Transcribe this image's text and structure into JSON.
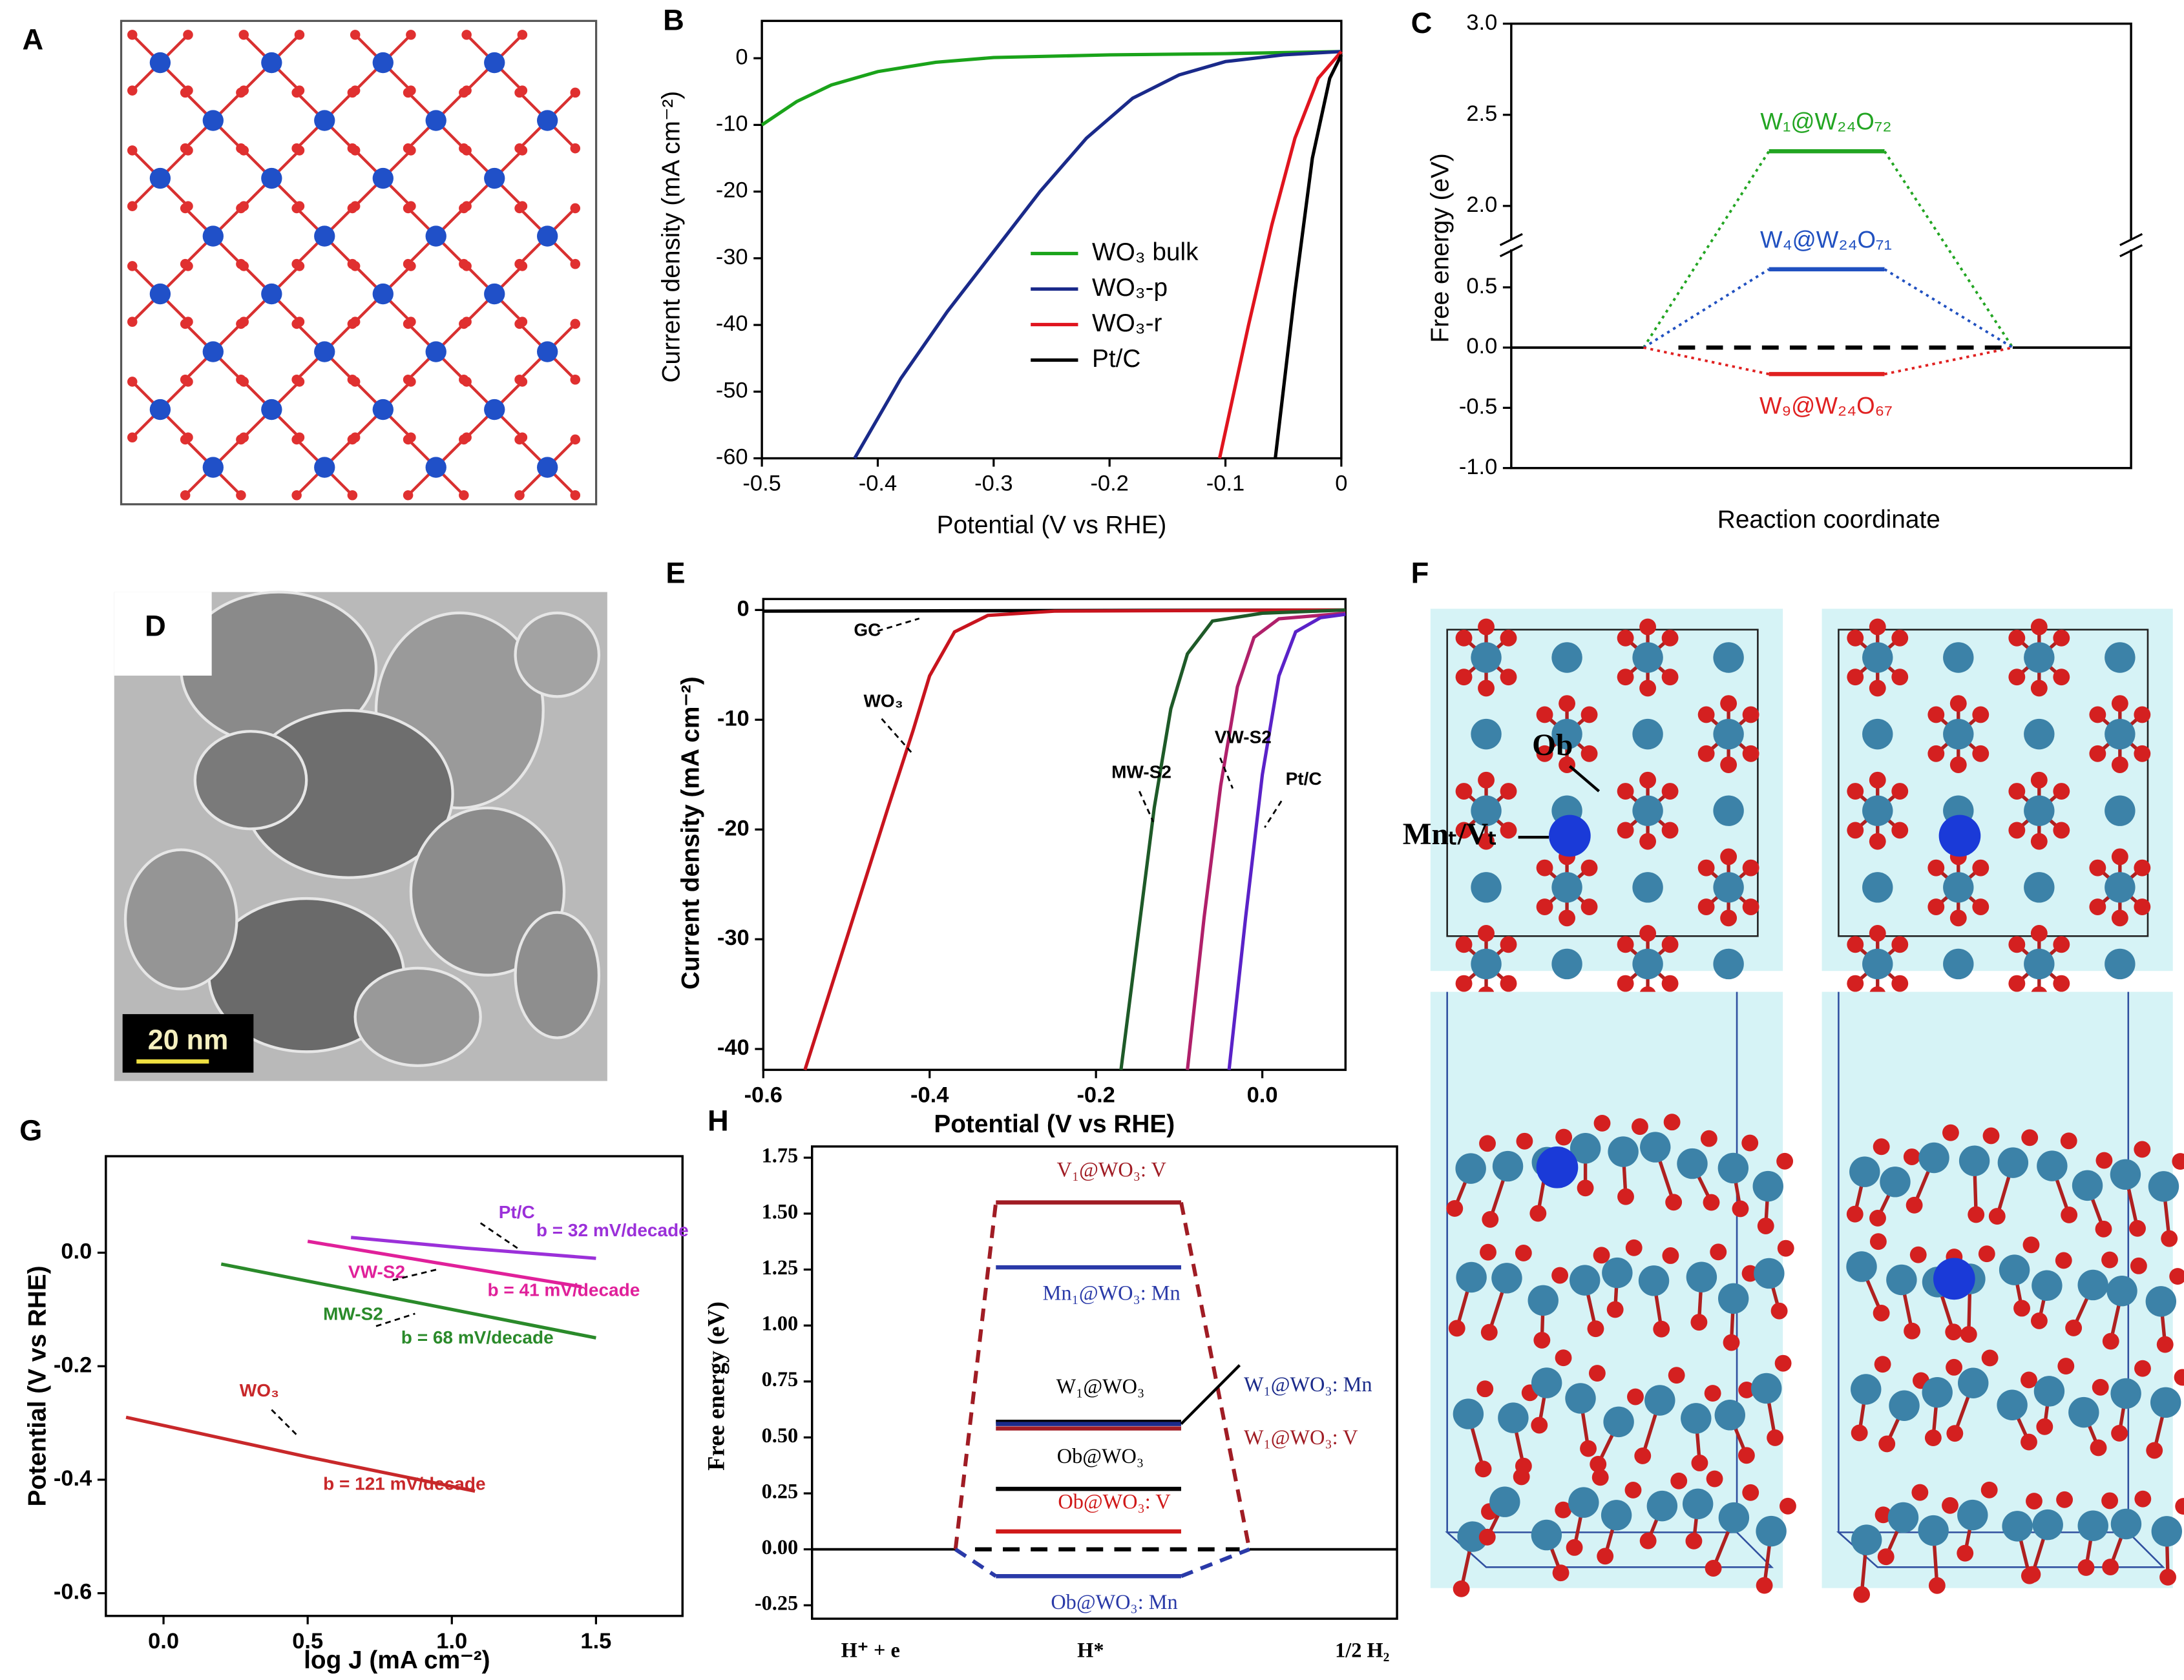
{
  "panel_labels": [
    "A",
    "B",
    "C",
    "D",
    "E",
    "F",
    "G",
    "H"
  ],
  "tem_image": {
    "scale_bar": "20 nm"
  },
  "structure_labels": [
    "Ob",
    "Mnₜ/Vₜ"
  ],
  "chart_data": [
    {
      "type": "line",
      "x_label": "Potential (V vs RHE)",
      "y_label": "Current density (mA cm⁻²)",
      "xlim": [
        -0.5,
        0
      ],
      "ylim": [
        -60,
        5.6
      ],
      "xticks": [
        -0.5,
        -0.4,
        -0.3,
        -0.2,
        -0.1,
        0
      ],
      "yticks": [
        0,
        -10,
        -20,
        -30,
        -40,
        -50,
        -60
      ],
      "legend": "center-right",
      "series": [
        {
          "name": "WO₃ bulk",
          "color": "#1aa31a",
          "x": [
            -0.5,
            -0.47,
            -0.44,
            -0.4,
            -0.35,
            -0.3,
            -0.2,
            -0.1,
            0
          ],
          "values": [
            -10,
            -6.5,
            -4,
            -2,
            -0.6,
            0.1,
            0.5,
            0.7,
            1
          ]
        },
        {
          "name": "WO₃-p",
          "color": "#1a2a8a",
          "x": [
            -0.42,
            -0.38,
            -0.34,
            -0.3,
            -0.26,
            -0.22,
            -0.18,
            -0.14,
            -0.1,
            -0.05,
            0
          ],
          "values": [
            -60,
            -48,
            -38,
            -29,
            -20,
            -12,
            -6,
            -2.5,
            -0.5,
            0.5,
            1
          ]
        },
        {
          "name": "WO₃-r",
          "color": "#e0141e",
          "x": [
            -0.105,
            -0.08,
            -0.06,
            -0.04,
            -0.02,
            0
          ],
          "values": [
            -60,
            -40,
            -25,
            -12,
            -3,
            1
          ]
        },
        {
          "name": "Pt/C",
          "color": "#000000",
          "x": [
            -0.057,
            -0.04,
            -0.025,
            -0.01,
            0
          ],
          "values": [
            -60,
            -35,
            -15,
            -3,
            0.5
          ]
        }
      ]
    },
    {
      "type": "energy_levels",
      "x_label": "Reaction coordinate",
      "y_label": "Free energy (eV)",
      "ylim": [
        -1,
        3
      ],
      "ybreak": [
        0.85,
        1.8
      ],
      "yticks": [
        {
          "value": -1,
          "label": "-1.0"
        },
        -0.5,
        {
          "value": 0,
          "label": "0.0"
        },
        0.5,
        {
          "value": 2,
          "label": "2.0"
        },
        2.5,
        {
          "value": 3,
          "label": "3.0"
        }
      ],
      "baseline": 0,
      "connector_style": "dotted",
      "levels": [
        {
          "label": "W₁@W₂₄O₇₂",
          "color": "#22a522",
          "value": 2.3,
          "connector": true
        },
        {
          "label": "W₄@W₂₄O₇₁",
          "color": "#2050c0",
          "value": 0.65,
          "connector": true
        },
        {
          "label": "W₉@W₂₄O₆₇",
          "color": "#e02020",
          "value": -0.22,
          "connector": true
        }
      ]
    },
    {
      "type": "line",
      "x_label": "Potential (V vs RHE)",
      "y_label": "Current density (mA cm⁻²)",
      "xlim": [
        -0.6,
        0.1
      ],
      "ylim": [
        -41.9,
        1
      ],
      "xticks": [
        -0.6,
        -0.4,
        -0.2,
        {
          "value": 0,
          "label": "0.0"
        }
      ],
      "yticks": [
        0,
        -10,
        -20,
        -30,
        -40
      ],
      "series": [
        {
          "name": "GC",
          "color": "#000000",
          "x": [
            -0.6,
            0.1
          ],
          "values": [
            -0.1,
            0
          ]
        },
        {
          "name": "WO₃",
          "color": "#c8141e",
          "x": [
            -0.55,
            -0.5,
            -0.45,
            -0.42,
            -0.4,
            -0.37,
            -0.33,
            -0.25,
            0.1
          ],
          "values": [
            -41.9,
            -30,
            -18,
            -11,
            -6,
            -2,
            -0.5,
            -0.1,
            0
          ]
        },
        {
          "name": "MW-S2",
          "color": "#1e5a28",
          "x": [
            -0.17,
            -0.15,
            -0.13,
            -0.11,
            -0.09,
            -0.06,
            0,
            0.1
          ],
          "values": [
            -41.9,
            -30,
            -18,
            -9,
            -4,
            -1,
            -0.3,
            0
          ]
        },
        {
          "name": "VW-S2",
          "color": "#b0206a",
          "x": [
            -0.09,
            -0.07,
            -0.05,
            -0.03,
            -0.01,
            0.02,
            0.1
          ],
          "values": [
            -41.9,
            -28,
            -16,
            -7,
            -2.5,
            -0.8,
            -0.3
          ]
        },
        {
          "name": "Pt/C",
          "color": "#5a22c8",
          "x": [
            -0.04,
            -0.02,
            0,
            0.02,
            0.04,
            0.07,
            0.1
          ],
          "values": [
            -41.9,
            -28,
            -15,
            -6,
            -2,
            -0.7,
            -0.4
          ]
        }
      ],
      "annotations": [
        {
          "text": "GC",
          "color": "#000000"
        },
        {
          "text": "WO₃",
          "color": "#000000"
        },
        {
          "text": "MW-S2",
          "color": "#000000"
        },
        {
          "text": "VW-S2",
          "color": "#000000"
        },
        {
          "text": "Pt/C",
          "color": "#000000"
        }
      ]
    },
    {
      "type": "line",
      "x_label": "log J (mA cm⁻²)",
      "y_label": "Potential (V vs RHE)",
      "xlim": [
        -0.2,
        1.8
      ],
      "ylim": [
        -0.64,
        0.17
      ],
      "xticks": [
        {
          "value": 0,
          "label": "0.0"
        },
        0.5,
        {
          "value": 1,
          "label": "1.0"
        },
        1.5
      ],
      "yticks": [
        {
          "value": 0,
          "label": "0.0"
        },
        -0.2,
        -0.4,
        -0.6
      ],
      "series": [
        {
          "name": "Pt/C",
          "color": "#9b30d9",
          "x": [
            0.65,
            1.05,
            1.5
          ],
          "values": [
            0.027,
            0.008,
            -0.01
          ]
        },
        {
          "name": "VW-S2",
          "color": "#e0209a",
          "x": [
            0.5,
            0.95,
            1.45
          ],
          "values": [
            0.02,
            -0.018,
            -0.06
          ]
        },
        {
          "name": "MW-S2",
          "color": "#2a8a2a",
          "x": [
            0.2,
            0.85,
            1.5
          ],
          "values": [
            -0.02,
            -0.085,
            -0.15
          ]
        },
        {
          "name": "WO₃",
          "color": "#c8282a",
          "x": [
            -0.13,
            0.5,
            1.08
          ],
          "values": [
            -0.29,
            -0.36,
            -0.42
          ]
        }
      ],
      "annotations": [
        {
          "text": "Pt/C",
          "color": "#9b30d9"
        },
        {
          "text": "b = 32 mV/decade",
          "color": "#9b30d9"
        },
        {
          "text": "VW-S2",
          "color": "#e0209a"
        },
        {
          "text": "b = 41 mV/decade",
          "color": "#e0209a"
        },
        {
          "text": "MW-S2",
          "color": "#2a8a2a"
        },
        {
          "text": "b = 68 mV/decade",
          "color": "#2a8a2a"
        },
        {
          "text": "WO₃",
          "color": "#c8282a"
        },
        {
          "text": "b = 121 mV/decade",
          "color": "#c8282a"
        }
      ]
    },
    {
      "type": "energy_levels",
      "y_label": "Free energy (eV)",
      "categories": [
        "H⁺ + e",
        "H*",
        "1/2 H₂"
      ],
      "ylim": [
        -0.31,
        1.8
      ],
      "yticks": [
        1.75,
        {
          "value": 1.5,
          "label": "1.50"
        },
        1.25,
        {
          "value": 1,
          "label": "1.00"
        },
        0.75,
        {
          "value": 0.5,
          "label": "0.50"
        },
        0.25,
        {
          "value": 0,
          "label": "0.00"
        },
        -0.25
      ],
      "baseline": 0,
      "connector_style": "dashed",
      "levels": [
        {
          "label": "V₁@WO₃: V",
          "color": "#a01c24",
          "value": 1.55,
          "connector": true
        },
        {
          "label": "Mn₁@WO₃: Mn",
          "color": "#2a3aa8",
          "value": 1.26
        },
        {
          "label": "W₁@WO₃",
          "color": "#000000",
          "value": 0.57
        },
        {
          "label": "W₁@WO₃: Mn",
          "color": "#1a2a8a",
          "value": 0.56
        },
        {
          "label": "W₁@WO₃: V",
          "color": "#a01c24",
          "value": 0.54
        },
        {
          "label": "Ob@WO₃",
          "color": "#000000",
          "value": 0.27
        },
        {
          "label": "Ob@WO₃: V",
          "color": "#d01818",
          "value": 0.08
        },
        {
          "label": "Ob@WO₃: Mn",
          "color": "#2a3aa8",
          "value": -0.12,
          "connector": true
        }
      ]
    }
  ]
}
